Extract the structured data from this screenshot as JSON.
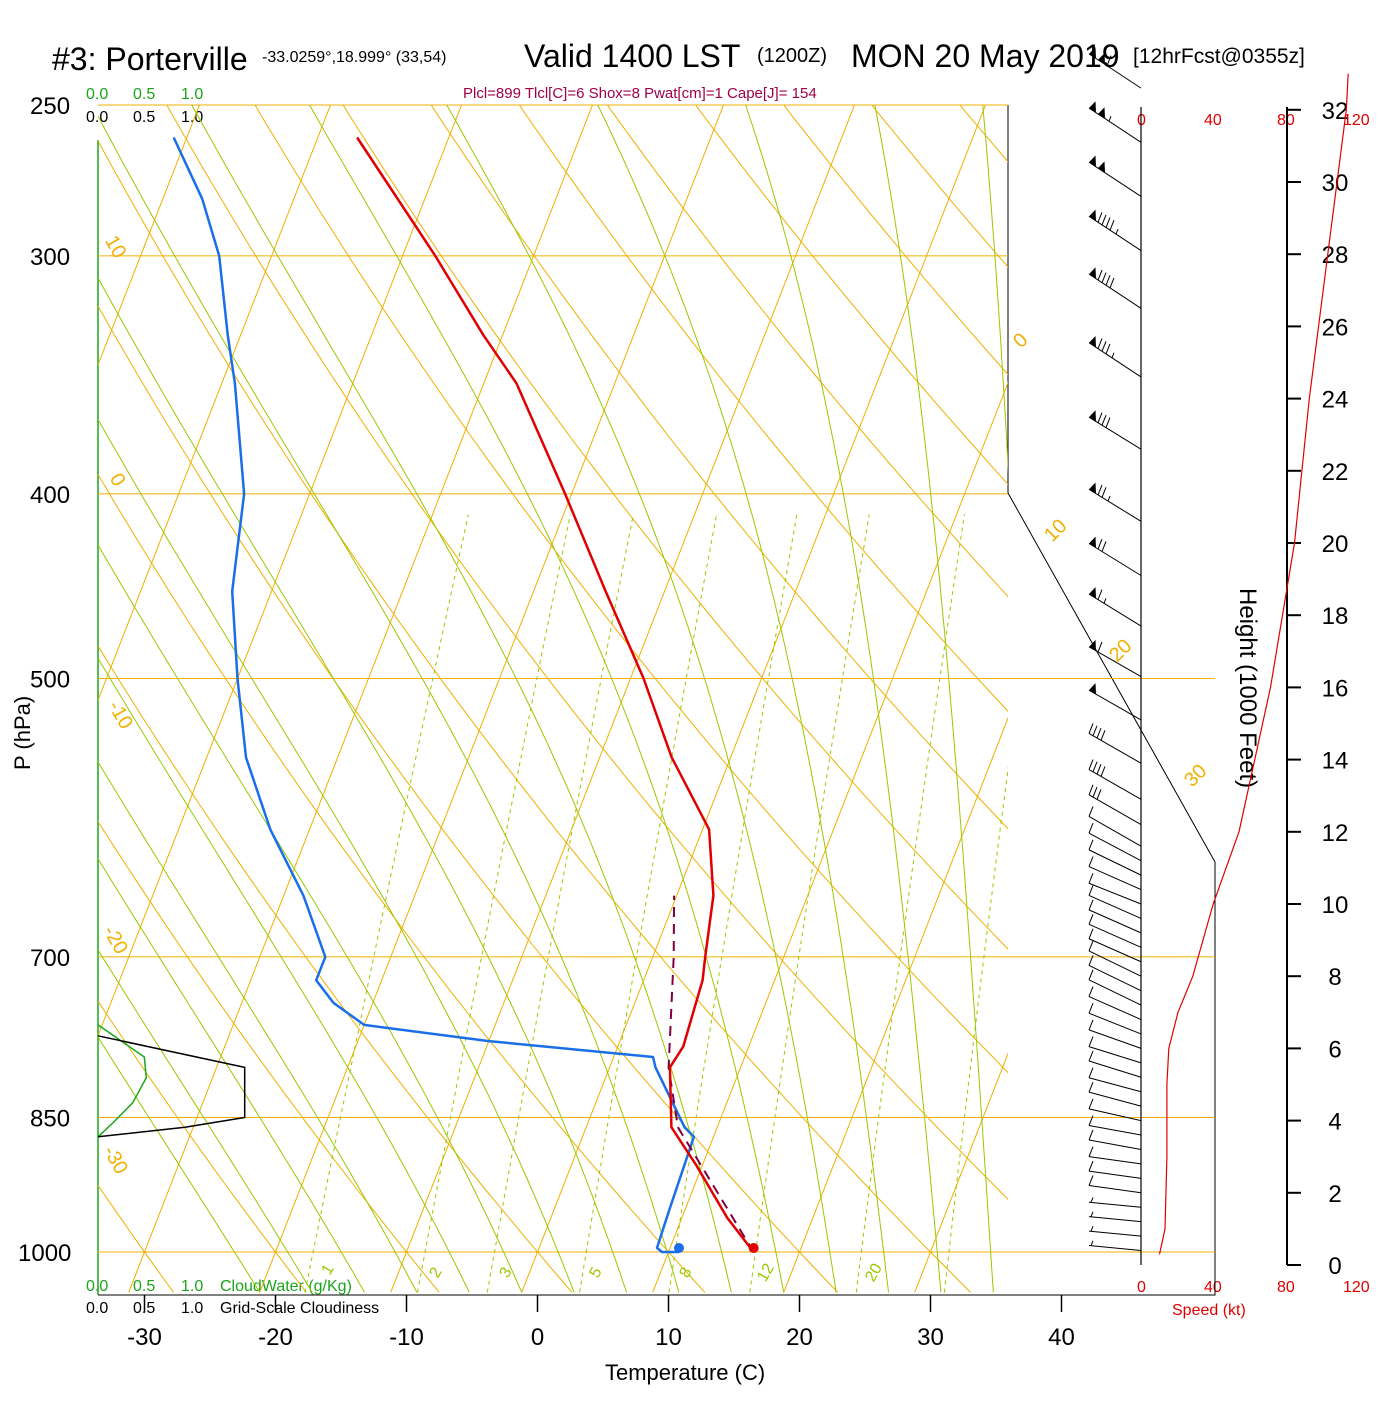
{
  "header": {
    "station": "#3: Porterville",
    "coords": "-33.0259°,18.999° (33,54)",
    "valid": "Valid 1400 LST",
    "utc": "(1200Z)",
    "date": "MON 20 May 2019",
    "forecast": "[12hrFcst@0355z]"
  },
  "diagnostics": "Plcl=899 Tlcl[C]=6 Shox=8 Pwat[cm]=1 Cape[J]= 154",
  "cloud_scale": {
    "water_ticks": [
      "0.0",
      "0.5",
      "1.0"
    ],
    "cover_ticks": [
      "0.0",
      "0.5",
      "1.0"
    ],
    "water_label": "CloudWater (g/Kg)",
    "cover_label": "Grid-Scale Cloudiness"
  },
  "speed_scale": {
    "ticks": [
      "0",
      "40",
      "80",
      "120"
    ],
    "label": "Speed (kt)"
  },
  "colors": {
    "temperature": "#e00000",
    "dewpoint": "#1a6fe8",
    "parcel": "#800040",
    "isotherm": "#f0b000",
    "dry_adiabat": "#f0b000",
    "moist_adiabat": "#9ac800",
    "mixing_ratio": "#9ac800",
    "cloud_water": "#1aa51a",
    "wind_speed": "#e00000"
  },
  "chart_data": {
    "type": "line",
    "diagram": "skew-T log-p",
    "xlabel": "Temperature (C)",
    "ylabel": "P (hPa)",
    "height_label": "Height (1000 Feet)",
    "x_ticks": [
      "-30",
      "-20",
      "-10",
      "0",
      "10",
      "20",
      "30",
      "40"
    ],
    "p_ticks": [
      "250",
      "300",
      "400",
      "500",
      "700",
      "850",
      "1000"
    ],
    "height_ticks": [
      "0",
      "2",
      "4",
      "6",
      "8",
      "10",
      "12",
      "14",
      "16",
      "18",
      "20",
      "22",
      "24",
      "26",
      "28",
      "30",
      "32"
    ],
    "xlim": [
      -33,
      47
    ],
    "plim": [
      1030,
      250
    ],
    "isotherm_labels": [
      "10",
      "0",
      "-10",
      "-20",
      "-30",
      "0",
      "10",
      "20",
      "30"
    ],
    "mixing_ratio_labels": [
      "1",
      "2",
      "3",
      "5",
      "8",
      "12",
      "20"
    ],
    "temperature_profile": [
      [
        1000,
        16.5
      ],
      [
        960,
        13.5
      ],
      [
        900,
        9.5
      ],
      [
        860,
        6.5
      ],
      [
        800,
        4.6
      ],
      [
        780,
        5.0
      ],
      [
        720,
        4.5
      ],
      [
        700,
        4.0
      ],
      [
        650,
        2.8
      ],
      [
        600,
        0.5
      ],
      [
        550,
        -4.5
      ],
      [
        500,
        -9.0
      ],
      [
        450,
        -14.5
      ],
      [
        400,
        -20.5
      ],
      [
        350,
        -27.5
      ],
      [
        330,
        -31.5
      ],
      [
        300,
        -37.5
      ],
      [
        260,
        -47.0
      ]
    ],
    "dewpoint_profile": [
      [
        1000,
        10.8
      ],
      [
        1000,
        9.5
      ],
      [
        995,
        9.0
      ],
      [
        950,
        8.8
      ],
      [
        870,
        8.5
      ],
      [
        860,
        7.5
      ],
      [
        800,
        3.5
      ],
      [
        790,
        3.0
      ],
      [
        775,
        -10.0
      ],
      [
        760,
        -20.0
      ],
      [
        740,
        -23.0
      ],
      [
        720,
        -25.0
      ],
      [
        700,
        -25.0
      ],
      [
        650,
        -28.5
      ],
      [
        600,
        -33.0
      ],
      [
        550,
        -37.0
      ],
      [
        500,
        -40.0
      ],
      [
        450,
        -43.0
      ],
      [
        400,
        -45.0
      ],
      [
        350,
        -49.0
      ],
      [
        330,
        -51.0
      ],
      [
        300,
        -54.0
      ],
      [
        280,
        -57.0
      ],
      [
        260,
        -61.0
      ]
    ],
    "parcel_profile": [
      [
        1000,
        16.5
      ],
      [
        860,
        7.0
      ],
      [
        800,
        4.5
      ],
      [
        700,
        1.6
      ],
      [
        650,
        -0.2
      ]
    ],
    "cloud_water": [
      [
        760,
        0.0
      ],
      [
        790,
        0.24
      ],
      [
        810,
        0.25
      ],
      [
        835,
        0.18
      ],
      [
        855,
        0.08
      ],
      [
        870,
        0.0
      ]
    ],
    "cloud_fraction": [
      [
        770,
        0.0
      ],
      [
        800,
        0.76
      ],
      [
        850,
        0.76
      ],
      [
        860,
        0.45
      ],
      [
        870,
        0.0
      ]
    ],
    "wind_speed_profile": [
      [
        0.3,
        10
      ],
      [
        1,
        13
      ],
      [
        3,
        14
      ],
      [
        5,
        14
      ],
      [
        6,
        15
      ],
      [
        7,
        20
      ],
      [
        8,
        28
      ],
      [
        10,
        39
      ],
      [
        12,
        53
      ],
      [
        16,
        70
      ],
      [
        20,
        83
      ],
      [
        24,
        91
      ],
      [
        28,
        101
      ],
      [
        32,
        111
      ],
      [
        33,
        112
      ]
    ],
    "wind_barbs": [
      {
        "h": 0.4,
        "dir": 60,
        "spd": 5
      },
      {
        "h": 0.8,
        "dir": 60,
        "spd": 5
      },
      {
        "h": 1.2,
        "dir": 60,
        "spd": 5
      },
      {
        "h": 1.6,
        "dir": 60,
        "spd": 5
      },
      {
        "h": 2.0,
        "dir": 65,
        "spd": 10
      },
      {
        "h": 2.4,
        "dir": 65,
        "spd": 10
      },
      {
        "h": 2.8,
        "dir": 65,
        "spd": 10
      },
      {
        "h": 3.2,
        "dir": 70,
        "spd": 10
      },
      {
        "h": 3.6,
        "dir": 70,
        "spd": 10
      },
      {
        "h": 4.0,
        "dir": 75,
        "spd": 10
      },
      {
        "h": 4.4,
        "dir": 80,
        "spd": 10
      },
      {
        "h": 4.8,
        "dir": 80,
        "spd": 10
      },
      {
        "h": 5.2,
        "dir": 85,
        "spd": 10
      },
      {
        "h": 5.6,
        "dir": 85,
        "spd": 10
      },
      {
        "h": 6.0,
        "dir": 90,
        "spd": 10
      },
      {
        "h": 6.4,
        "dir": 95,
        "spd": 10
      },
      {
        "h": 6.8,
        "dir": 100,
        "spd": 10
      },
      {
        "h": 7.2,
        "dir": 105,
        "spd": 10
      },
      {
        "h": 7.6,
        "dir": 105,
        "spd": 10
      },
      {
        "h": 8.0,
        "dir": 105,
        "spd": 10
      },
      {
        "h": 8.4,
        "dir": 100,
        "spd": 10
      },
      {
        "h": 8.8,
        "dir": 100,
        "spd": 10
      },
      {
        "h": 9.2,
        "dir": 100,
        "spd": 10
      },
      {
        "h": 9.6,
        "dir": 100,
        "spd": 10
      },
      {
        "h": 10.0,
        "dir": 95,
        "spd": 10
      },
      {
        "h": 10.4,
        "dir": 100,
        "spd": 10
      },
      {
        "h": 10.8,
        "dir": 105,
        "spd": 10
      },
      {
        "h": 11.2,
        "dir": 110,
        "spd": 10
      },
      {
        "h": 11.6,
        "dir": 115,
        "spd": 10
      },
      {
        "h": 12.2,
        "dir": 115,
        "spd": 30
      },
      {
        "h": 12.9,
        "dir": 115,
        "spd": 40
      },
      {
        "h": 13.9,
        "dir": 115,
        "spd": 40
      },
      {
        "h": 15.1,
        "dir": 115,
        "spd": 50
      },
      {
        "h": 16.3,
        "dir": 115,
        "spd": 60
      },
      {
        "h": 17.7,
        "dir": 120,
        "spd": 65
      },
      {
        "h": 19.1,
        "dir": 120,
        "spd": 70
      },
      {
        "h": 20.6,
        "dir": 120,
        "spd": 75
      },
      {
        "h": 22.6,
        "dir": 120,
        "spd": 80
      },
      {
        "h": 24.6,
        "dir": 125,
        "spd": 85
      },
      {
        "h": 26.5,
        "dir": 125,
        "spd": 90
      },
      {
        "h": 28.1,
        "dir": 125,
        "spd": 95
      },
      {
        "h": 29.6,
        "dir": 125,
        "spd": 100
      },
      {
        "h": 31.1,
        "dir": 125,
        "spd": 105
      },
      {
        "h": 32.6,
        "dir": 125,
        "spd": 110
      }
    ]
  }
}
